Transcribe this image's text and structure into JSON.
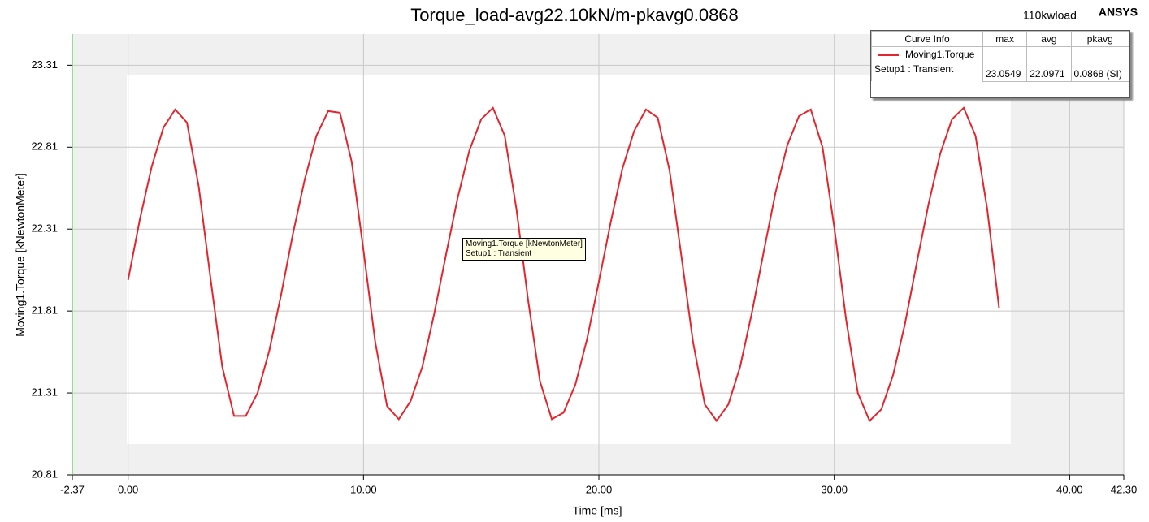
{
  "chart_data": {
    "type": "line",
    "title": "Torque_load-avg22.10kN/m-pkavg0.0868",
    "xlabel": "Time [ms]",
    "ylabel": "Moving1.Torque [kNewtonMeter]",
    "x": [
      0,
      0.5,
      1,
      1.5,
      2,
      2.5,
      3,
      3.5,
      4,
      4.5,
      5,
      5.5,
      6,
      6.5,
      7,
      7.5,
      8,
      8.5,
      9,
      9.5,
      10,
      10.5,
      11,
      11.5,
      12,
      12.5,
      13,
      13.5,
      14,
      14.5,
      15,
      15.5,
      16,
      16.5,
      17,
      17.5,
      18,
      18.5,
      19,
      19.5,
      20,
      20.5,
      21,
      21.5,
      22,
      22.5,
      23,
      23.5,
      24,
      24.5,
      25,
      25.5,
      26,
      26.5,
      27,
      27.5,
      28,
      28.5,
      29,
      29.5,
      30,
      30.5,
      31,
      31.5,
      32,
      32.5,
      33,
      33.5,
      34,
      34.5,
      35,
      35.5,
      36,
      36.5,
      37
    ],
    "series": [
      {
        "name": "Moving1.Torque",
        "color": "#e3262e",
        "values": [
          22.0,
          22.37,
          22.69,
          22.93,
          23.04,
          22.96,
          22.57,
          22.01,
          21.47,
          21.17,
          21.17,
          21.31,
          21.57,
          21.91,
          22.28,
          22.61,
          22.88,
          23.03,
          23.02,
          22.72,
          22.18,
          21.62,
          21.23,
          21.15,
          21.26,
          21.47,
          21.79,
          22.15,
          22.5,
          22.79,
          22.98,
          23.05,
          22.88,
          22.43,
          21.87,
          21.38,
          21.15,
          21.19,
          21.36,
          21.64,
          21.99,
          22.35,
          22.68,
          22.91,
          23.04,
          22.99,
          22.67,
          22.15,
          21.62,
          21.24,
          21.14,
          21.24,
          21.47,
          21.8,
          22.17,
          22.53,
          22.82,
          23.0,
          23.04,
          22.81,
          22.32,
          21.76,
          21.31,
          21.14,
          21.21,
          21.42,
          21.73,
          22.1,
          22.46,
          22.77,
          22.98,
          23.05,
          22.88,
          22.43,
          21.83
        ]
      }
    ],
    "xlim": [
      -2.37,
      42.3
    ],
    "xticks": [
      -2.37,
      {
        "value": 0,
        "label": "0.00"
      },
      {
        "value": 10,
        "label": "10.00"
      },
      {
        "value": 20,
        "label": "20.00"
      },
      {
        "value": 30,
        "label": "30.00"
      },
      {
        "value": 40,
        "label": "40.00"
      },
      {
        "value": 42.3,
        "label": "42.30"
      }
    ],
    "ylim": [
      20.81,
      23.5
    ],
    "yticks": [
      20.81,
      21.31,
      21.81,
      22.31,
      22.81,
      23.31
    ],
    "grid": true
  },
  "corner_text": "110kwload",
  "brand": "ANSYS",
  "curve_info": {
    "headers": [
      "Curve Info",
      "max",
      "avg",
      "pkavg"
    ],
    "curve": "Moving1.Torque",
    "solution": "Setup1 : Transient",
    "values": [
      "23.0549",
      "22.0971",
      "0.0868 (SI)"
    ]
  },
  "tooltip": [
    "Moving1.Torque [kNewtonMeter]",
    "Setup1 : Transient"
  ]
}
